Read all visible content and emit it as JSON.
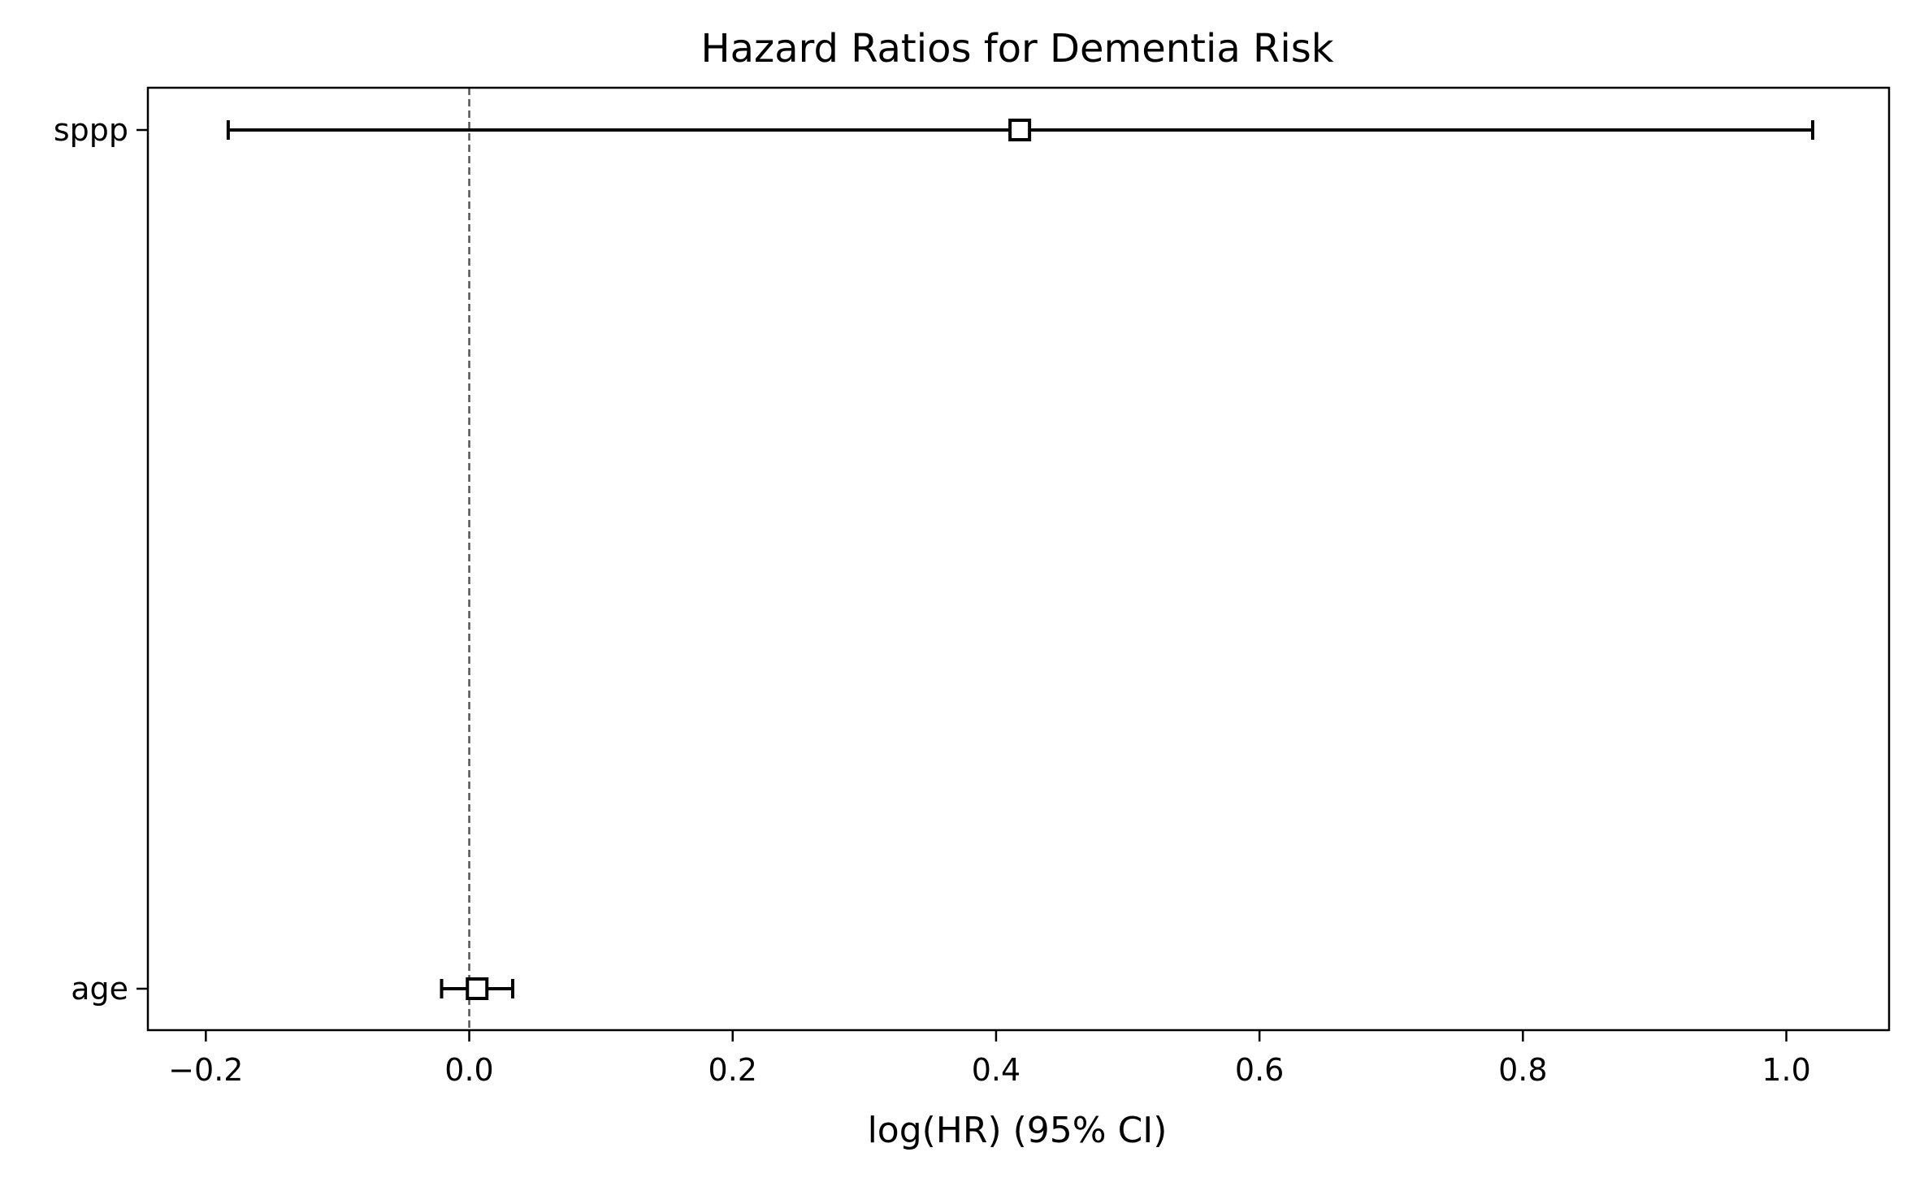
{
  "chart_data": {
    "type": "forest",
    "title": "Hazard Ratios for Dementia Risk",
    "xlabel": "log(HR) (95% CI)",
    "ylabel": "",
    "xlim": [
      -0.244,
      1.078
    ],
    "x_ticks": [
      -0.2,
      0.0,
      0.2,
      0.4,
      0.6,
      0.8,
      1.0
    ],
    "x_tick_labels": [
      "−0.2",
      "0.0",
      "0.2",
      "0.4",
      "0.6",
      "0.8",
      "1.0"
    ],
    "reference_line": 0.0,
    "grid": false,
    "legend": "none",
    "marker": "square",
    "colors": {
      "marks": "#000000",
      "reference_line": "#555555"
    },
    "rows": [
      {
        "label": "sppp",
        "estimate": 0.418,
        "ci_low": -0.183,
        "ci_high": 1.02
      },
      {
        "label": "age",
        "estimate": 0.006,
        "ci_low": -0.021,
        "ci_high": 0.033
      }
    ]
  }
}
